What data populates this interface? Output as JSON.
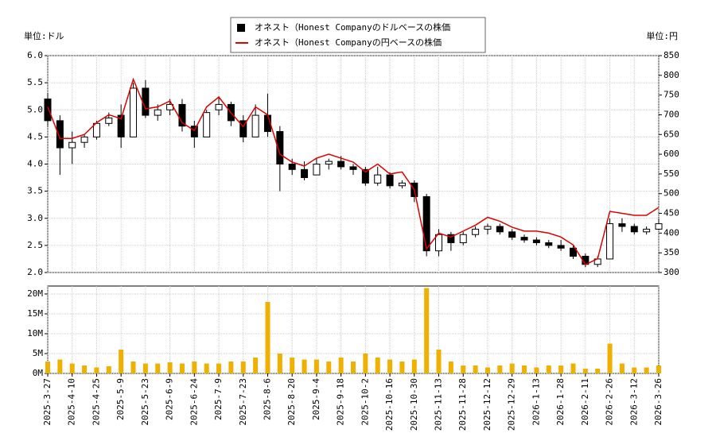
{
  "chart_data": [
    {
      "type": "candlestick",
      "y_label": "単位:ドル",
      "y2_label": "単位:円",
      "legend": "top",
      "grid": true,
      "ylim": [
        2,
        6
      ],
      "yticks": [
        {
          "value": 2,
          "label": "2.0"
        },
        2.5,
        {
          "value": 3,
          "label": "3.0"
        },
        3.5,
        {
          "value": 4,
          "label": "4.0"
        },
        4.5,
        {
          "value": 5,
          "label": "5.0"
        },
        5.5,
        {
          "value": 6,
          "label": "6.0"
        }
      ],
      "y2lim": [
        300,
        850
      ],
      "y2ticks": [
        300,
        350,
        400,
        450,
        500,
        550,
        600,
        650,
        700,
        750,
        800,
        850
      ],
      "series": [
        {
          "name": "オネスト（Honest Companyのドルベースの株価",
          "color": "#000000",
          "open": [
            5.2,
            4.8,
            4.3,
            4.4,
            4.5,
            4.75,
            4.9,
            4.5,
            5.4,
            4.9,
            5.0,
            5.1,
            4.7,
            4.5,
            5.0,
            5.1,
            4.8,
            4.5,
            4.9,
            4.6,
            4.0,
            3.9,
            3.8,
            4.0,
            4.05,
            3.95,
            3.9,
            3.65,
            3.8,
            3.6,
            3.65,
            3.4,
            2.4,
            2.7,
            2.55,
            2.7,
            2.8,
            2.85,
            2.75,
            2.65,
            2.6,
            2.55,
            2.5,
            2.45,
            2.3,
            2.15,
            2.25,
            2.9,
            2.85,
            2.75,
            2.8
          ],
          "high": [
            5.3,
            4.9,
            4.6,
            4.55,
            4.8,
            4.95,
            5.1,
            5.5,
            5.55,
            5.1,
            5.2,
            5.2,
            4.8,
            5.0,
            5.25,
            5.15,
            4.9,
            5.1,
            5.3,
            4.7,
            4.1,
            4.05,
            4.1,
            4.1,
            4.15,
            4.0,
            3.95,
            3.95,
            3.85,
            3.7,
            3.7,
            3.45,
            2.8,
            2.75,
            2.75,
            2.85,
            2.9,
            2.9,
            2.8,
            2.7,
            2.65,
            2.6,
            2.6,
            2.5,
            2.35,
            2.3,
            3.0,
            3.0,
            2.9,
            2.85,
            3.0
          ],
          "low": [
            4.7,
            3.8,
            4.0,
            4.3,
            4.45,
            4.7,
            4.3,
            4.5,
            4.85,
            4.8,
            4.9,
            4.6,
            4.3,
            4.5,
            4.9,
            4.7,
            4.4,
            4.5,
            4.5,
            3.5,
            3.8,
            3.7,
            3.8,
            3.9,
            3.9,
            3.8,
            3.6,
            3.6,
            3.55,
            3.55,
            3.3,
            2.3,
            2.3,
            2.4,
            2.5,
            2.65,
            2.7,
            2.7,
            2.6,
            2.55,
            2.5,
            2.45,
            2.4,
            2.25,
            2.1,
            2.1,
            2.25,
            2.75,
            2.7,
            2.7,
            2.8
          ],
          "close": [
            4.8,
            4.3,
            4.4,
            4.5,
            4.75,
            4.85,
            4.5,
            5.4,
            4.9,
            5.0,
            5.1,
            4.7,
            4.5,
            4.95,
            5.1,
            4.8,
            4.5,
            4.9,
            4.6,
            4.0,
            3.9,
            3.75,
            4.0,
            4.05,
            3.95,
            3.9,
            3.65,
            3.8,
            3.6,
            3.65,
            3.4,
            2.4,
            2.7,
            2.55,
            2.7,
            2.8,
            2.85,
            2.75,
            2.65,
            2.6,
            2.55,
            2.5,
            2.45,
            2.3,
            2.15,
            2.25,
            2.9,
            2.85,
            2.75,
            2.8,
            2.9
          ]
        },
        {
          "name": "オネスト（Honest Companyの円ベースの株価",
          "color": "#dd0000",
          "axis": "y2",
          "values": [
            720,
            640,
            640,
            650,
            680,
            700,
            690,
            790,
            715,
            720,
            735,
            680,
            660,
            720,
            745,
            705,
            670,
            720,
            700,
            600,
            580,
            570,
            590,
            600,
            590,
            580,
            555,
            575,
            550,
            555,
            510,
            360,
            400,
            390,
            405,
            420,
            440,
            430,
            415,
            405,
            405,
            400,
            390,
            370,
            320,
            335,
            455,
            450,
            445,
            445,
            465
          ]
        }
      ]
    },
    {
      "type": "bar",
      "color": "#f0b000",
      "grid": true,
      "ylim": [
        0,
        22000000
      ],
      "yticks": [
        {
          "value": 0,
          "label": "0M"
        },
        {
          "value": 5000000,
          "label": "5M"
        },
        {
          "value": 10000000,
          "label": "10M"
        },
        {
          "value": 15000000,
          "label": "15M"
        },
        {
          "value": 20000000,
          "label": "20M"
        }
      ],
      "categories": [
        "2025-3-27",
        null,
        "2025-4-10",
        null,
        "2025-4-25",
        null,
        "2025-5-9",
        null,
        "2025-5-23",
        null,
        "2025-6-9",
        null,
        "2025-6-24",
        null,
        "2025-7-9",
        null,
        "2025-7-23",
        null,
        "2025-8-6",
        null,
        "2025-8-20",
        null,
        "2025-9-4",
        null,
        "2025-9-18",
        null,
        "2025-10-2",
        null,
        "2025-10-16",
        null,
        "2025-10-30",
        null,
        "2025-11-13",
        null,
        "2025-11-28",
        null,
        "2025-12-12",
        null,
        "2025-12-29",
        null,
        "2026-1-13",
        null,
        "2026-1-28",
        null,
        "2026-2-11",
        null,
        "2026-2-26",
        null,
        "2026-3-12",
        null,
        "2026-3-26"
      ],
      "values": [
        3000000,
        3500000,
        2500000,
        2000000,
        1500000,
        1800000,
        6000000,
        3000000,
        2500000,
        2500000,
        2800000,
        2500000,
        3000000,
        2500000,
        2500000,
        3000000,
        3000000,
        4000000,
        18000000,
        5000000,
        4000000,
        3500000,
        3500000,
        3000000,
        4000000,
        3000000,
        5000000,
        4000000,
        3500000,
        3000000,
        3500000,
        21500000,
        6000000,
        3000000,
        2000000,
        2000000,
        1500000,
        2000000,
        2500000,
        2000000,
        1500000,
        2000000,
        2000000,
        2500000,
        1200000,
        1200000,
        7500000,
        2500000,
        1500000,
        1500000,
        2000000
      ]
    }
  ]
}
